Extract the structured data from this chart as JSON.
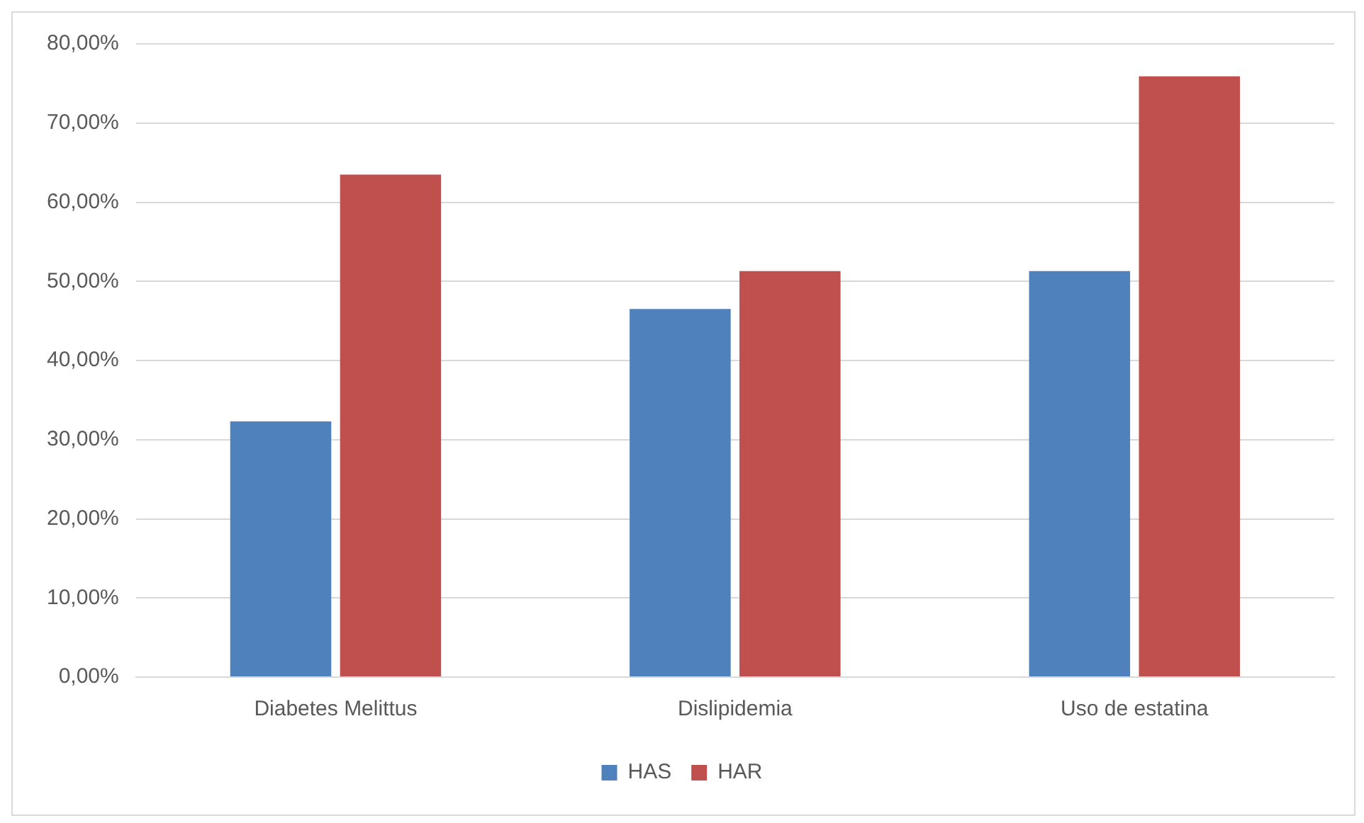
{
  "chart_data": {
    "type": "bar",
    "categories": [
      "Diabetes Melittus",
      "Dislipidemia",
      "Uso de estatina"
    ],
    "series": [
      {
        "name": "HAS",
        "color": "#4f81bd",
        "values": [
          32.3,
          46.5,
          51.3
        ]
      },
      {
        "name": "HAR",
        "color": "#c0504d",
        "values": [
          63.5,
          51.3,
          75.9
        ]
      }
    ],
    "ylim": [
      0,
      80
    ],
    "yticks": [
      {
        "value": 0,
        "label": "0,00%"
      },
      {
        "value": 10,
        "label": "10,00%"
      },
      {
        "value": 20,
        "label": "20,00%"
      },
      {
        "value": 30,
        "label": "30,00%"
      },
      {
        "value": 40,
        "label": "40,00%"
      },
      {
        "value": 50,
        "label": "50,00%"
      },
      {
        "value": 60,
        "label": "60,00%"
      },
      {
        "value": 70,
        "label": "70,00%"
      },
      {
        "value": 80,
        "label": "80,00%"
      }
    ],
    "grid": "y",
    "legend": "bottom"
  }
}
